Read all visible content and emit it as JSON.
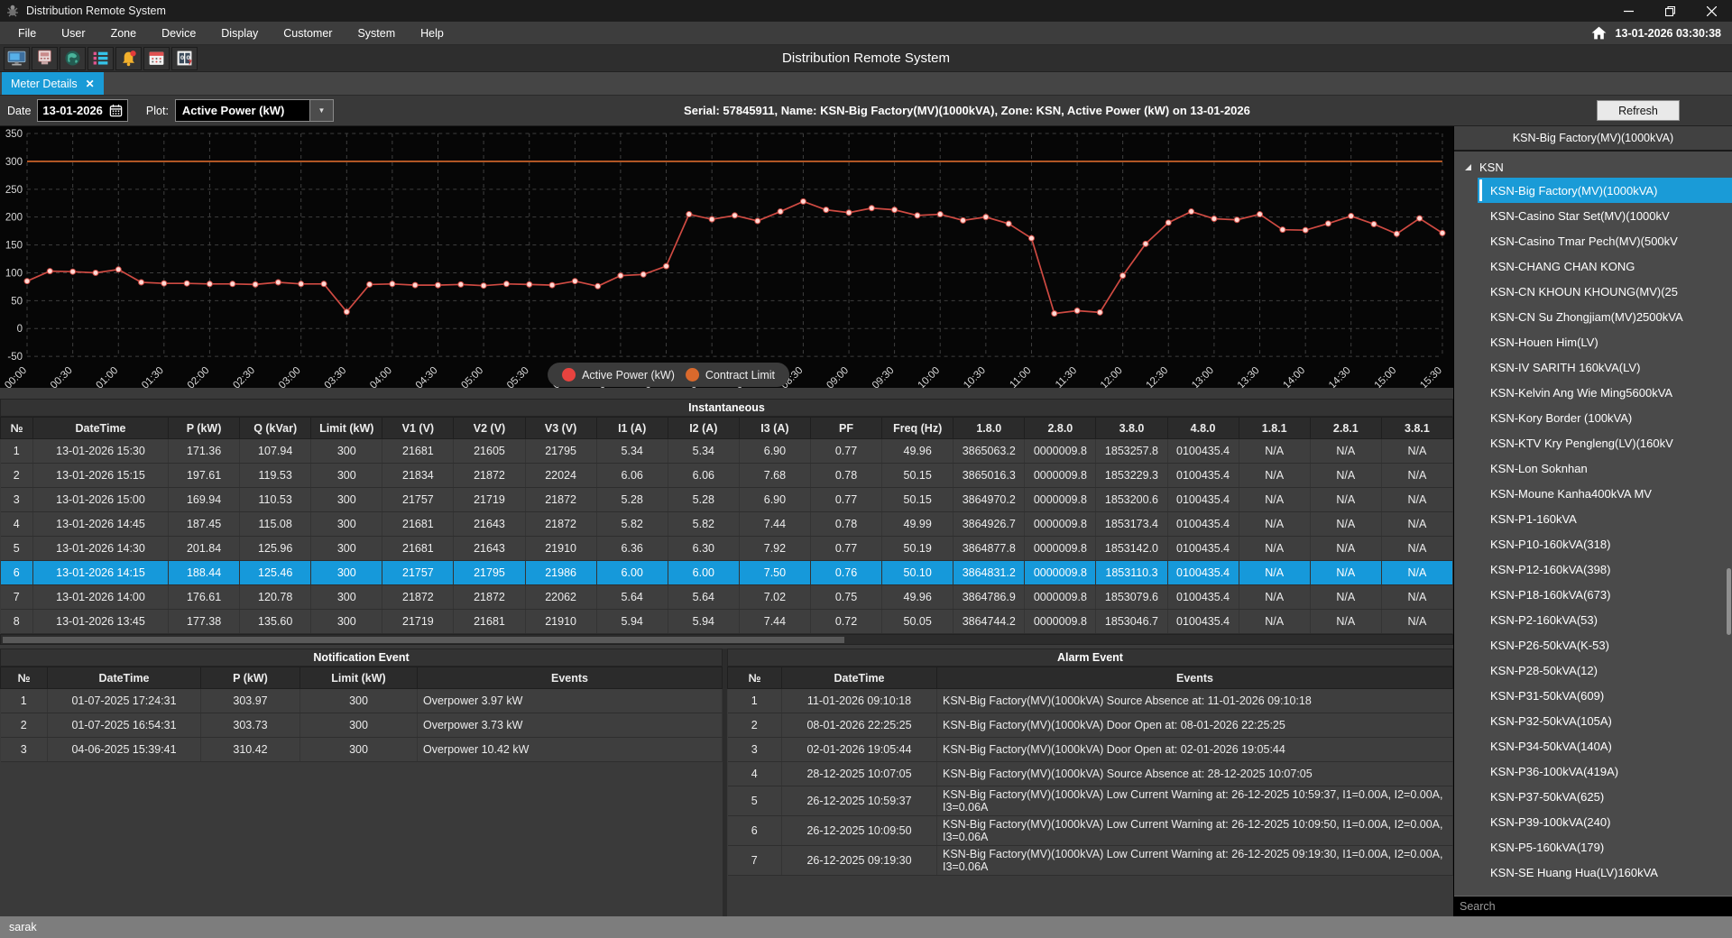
{
  "window": {
    "title": "Distribution Remote System"
  },
  "menu": {
    "items": [
      "File",
      "User",
      "Zone",
      "Device",
      "Display",
      "Customer",
      "System",
      "Help"
    ],
    "clock": "13-01-2026 03:30:38"
  },
  "toolbar": {
    "title": "Distribution Remote System",
    "icons": [
      "monitor-icon",
      "device-icon",
      "map-icon",
      "list-icon",
      "alarm-bell-icon",
      "calendar-grid-icon",
      "register-icon"
    ]
  },
  "tab": {
    "label": "Meter Details"
  },
  "controls": {
    "date_label": "Date",
    "date_value": "13-01-2026",
    "plot_label": "Plot:",
    "plot_value": "Active Power (kW)",
    "info": "Serial: 57845911, Name: KSN-Big Factory(MV)(1000kVA), Zone: KSN,  Active Power (kW)  on 13-01-2026",
    "refresh_label": "Refresh"
  },
  "chart_data": {
    "type": "line",
    "x": [
      "00:00",
      "00:15",
      "00:30",
      "00:45",
      "01:00",
      "01:15",
      "01:30",
      "01:45",
      "02:00",
      "02:15",
      "02:30",
      "02:45",
      "03:00",
      "03:15",
      "03:30",
      "03:45",
      "04:00",
      "04:15",
      "04:30",
      "04:45",
      "05:00",
      "05:15",
      "05:30",
      "05:45",
      "06:00",
      "06:15",
      "06:30",
      "06:45",
      "07:00",
      "07:15",
      "07:30",
      "07:45",
      "08:00",
      "08:15",
      "08:30",
      "08:45",
      "09:00",
      "09:15",
      "09:30",
      "09:45",
      "10:00",
      "10:15",
      "10:30",
      "10:45",
      "11:00",
      "11:15",
      "11:30",
      "11:45",
      "12:00",
      "12:15",
      "12:30",
      "12:45",
      "13:00",
      "13:15",
      "13:30",
      "13:45",
      "14:00",
      "14:15",
      "14:30",
      "14:45",
      "15:00",
      "15:15",
      "15:30"
    ],
    "series": [
      {
        "name": "Active Power (kW)",
        "color": "#cf4a42",
        "values": [
          85,
          103,
          102,
          100,
          106,
          83,
          81,
          81,
          80,
          80,
          79,
          83,
          80,
          80,
          30,
          79,
          80,
          78,
          78,
          79,
          77,
          80,
          79,
          78,
          85,
          76,
          95,
          97,
          112,
          205,
          196,
          203,
          193,
          210,
          228,
          213,
          208,
          216,
          213,
          203,
          205,
          194,
          200,
          188,
          162,
          27,
          32,
          29,
          95,
          152,
          190,
          210,
          197,
          195,
          205,
          177.38,
          176.61,
          188.44,
          201.84,
          187.45,
          169.94,
          197.61,
          171.36
        ]
      },
      {
        "name": "Contract Limit",
        "color": "#d9692c",
        "constant": 300
      }
    ],
    "ylim": [
      -50,
      350
    ],
    "ytick_step": 50,
    "xtick_every": 2,
    "grid": true,
    "legend_position": "bottom-center"
  },
  "instantaneous": {
    "title": "Instantaneous",
    "columns": [
      "№",
      "DateTime",
      "P (kW)",
      "Q (kVar)",
      "Limit (kW)",
      "V1 (V)",
      "V2 (V)",
      "V3 (V)",
      "I1 (A)",
      "I2 (A)",
      "I3 (A)",
      "PF",
      "Freq (Hz)",
      "1.8.0",
      "2.8.0",
      "3.8.0",
      "4.8.0",
      "1.8.1",
      "2.8.1",
      "3.8.1"
    ],
    "selected_row_index": 5,
    "rows": [
      [
        "1",
        "13-01-2026 15:30",
        "171.36",
        "107.94",
        "300",
        "21681",
        "21605",
        "21795",
        "5.34",
        "5.34",
        "6.90",
        "0.77",
        "49.96",
        "3865063.2",
        "0000009.8",
        "1853257.8",
        "0100435.4",
        "N/A",
        "N/A",
        "N/A"
      ],
      [
        "2",
        "13-01-2026 15:15",
        "197.61",
        "119.53",
        "300",
        "21834",
        "21872",
        "22024",
        "6.06",
        "6.06",
        "7.68",
        "0.78",
        "50.15",
        "3865016.3",
        "0000009.8",
        "1853229.3",
        "0100435.4",
        "N/A",
        "N/A",
        "N/A"
      ],
      [
        "3",
        "13-01-2026 15:00",
        "169.94",
        "110.53",
        "300",
        "21757",
        "21719",
        "21872",
        "5.28",
        "5.28",
        "6.90",
        "0.77",
        "50.15",
        "3864970.2",
        "0000009.8",
        "1853200.6",
        "0100435.4",
        "N/A",
        "N/A",
        "N/A"
      ],
      [
        "4",
        "13-01-2026 14:45",
        "187.45",
        "115.08",
        "300",
        "21681",
        "21643",
        "21872",
        "5.82",
        "5.82",
        "7.44",
        "0.78",
        "49.99",
        "3864926.7",
        "0000009.8",
        "1853173.4",
        "0100435.4",
        "N/A",
        "N/A",
        "N/A"
      ],
      [
        "5",
        "13-01-2026 14:30",
        "201.84",
        "125.96",
        "300",
        "21681",
        "21643",
        "21910",
        "6.36",
        "6.30",
        "7.92",
        "0.77",
        "50.19",
        "3864877.8",
        "0000009.8",
        "1853142.0",
        "0100435.4",
        "N/A",
        "N/A",
        "N/A"
      ],
      [
        "6",
        "13-01-2026 14:15",
        "188.44",
        "125.46",
        "300",
        "21757",
        "21795",
        "21986",
        "6.00",
        "6.00",
        "7.50",
        "0.76",
        "50.10",
        "3864831.2",
        "0000009.8",
        "1853110.3",
        "0100435.4",
        "N/A",
        "N/A",
        "N/A"
      ],
      [
        "7",
        "13-01-2026 14:00",
        "176.61",
        "120.78",
        "300",
        "21872",
        "21872",
        "22062",
        "5.64",
        "5.64",
        "7.02",
        "0.75",
        "49.96",
        "3864786.9",
        "0000009.8",
        "1853079.6",
        "0100435.4",
        "N/A",
        "N/A",
        "N/A"
      ],
      [
        "8",
        "13-01-2026 13:45",
        "177.38",
        "135.60",
        "300",
        "21719",
        "21681",
        "21910",
        "5.94",
        "5.94",
        "7.44",
        "0.72",
        "50.05",
        "3864744.2",
        "0000009.8",
        "1853046.7",
        "0100435.4",
        "N/A",
        "N/A",
        "N/A"
      ]
    ]
  },
  "notification_event": {
    "title": "Notification Event",
    "columns": [
      "№",
      "DateTime",
      "P (kW)",
      "Limit (kW)",
      "Events"
    ],
    "rows": [
      [
        "1",
        "01-07-2025 17:24:31",
        "303.97",
        "300",
        "Overpower 3.97 kW"
      ],
      [
        "2",
        "01-07-2025 16:54:31",
        "303.73",
        "300",
        "Overpower 3.73 kW"
      ],
      [
        "3",
        "04-06-2025 15:39:41",
        "310.42",
        "300",
        "Overpower 10.42 kW"
      ]
    ]
  },
  "alarm_event": {
    "title": "Alarm Event",
    "columns": [
      "№",
      "DateTime",
      "Events"
    ],
    "rows": [
      [
        "1",
        "11-01-2026 09:10:18",
        "KSN-Big Factory(MV)(1000kVA) Source Absence at: 11-01-2026 09:10:18"
      ],
      [
        "2",
        "08-01-2026 22:25:25",
        "KSN-Big Factory(MV)(1000kVA) Door Open at: 08-01-2026 22:25:25"
      ],
      [
        "3",
        "02-01-2026 19:05:44",
        "KSN-Big Factory(MV)(1000kVA) Door Open at: 02-01-2026 19:05:44"
      ],
      [
        "4",
        "28-12-2025 10:07:05",
        "KSN-Big Factory(MV)(1000kVA) Source Absence at: 28-12-2025 10:07:05"
      ],
      [
        "5",
        "26-12-2025 10:59:37",
        "KSN-Big Factory(MV)(1000kVA) Low Current Warning at: 26-12-2025 10:59:37, I1=0.00A, I2=0.00A, I3=0.06A"
      ],
      [
        "6",
        "26-12-2025 10:09:50",
        "KSN-Big Factory(MV)(1000kVA) Low Current Warning at: 26-12-2025 10:09:50, I1=0.00A, I2=0.00A, I3=0.06A"
      ],
      [
        "7",
        "26-12-2025 09:19:30",
        "KSN-Big Factory(MV)(1000kVA) Low Current Warning at: 26-12-2025 09:19:30, I1=0.00A, I2=0.00A, I3=0.06A"
      ]
    ]
  },
  "sidebar": {
    "header": "KSN-Big Factory(MV)(1000kVA)",
    "group": "KSN",
    "selected_index": 0,
    "search_placeholder": "Search",
    "items": [
      "KSN-Big Factory(MV)(1000kVA)",
      "KSN-Casino Star Set(MV)(1000kV",
      "KSN-Casino Tmar Pech(MV)(500kV",
      "KSN-CHANG CHAN KONG",
      "KSN-CN KHOUN KHOUNG(MV)(25",
      "KSN-CN Su Zhongjiam(MV)2500kVA",
      "KSN-Houen Him(LV)",
      "KSN-IV SARITH 160kVA(LV)",
      "KSN-Kelvin Ang Wie Ming5600kVA",
      "KSN-Kory Border (100kVA)",
      "KSN-KTV Kry Pengleng(LV)(160kV",
      "KSN-Lon Soknhan",
      "KSN-Moune Kanha400kVA MV",
      "KSN-P1-160kVA",
      "KSN-P10-160kVA(318)",
      "KSN-P12-160kVA(398)",
      "KSN-P18-160kVA(673)",
      "KSN-P2-160kVA(53)",
      "KSN-P26-50kVA(K-53)",
      "KSN-P28-50kVA(12)",
      "KSN-P31-50kVA(609)",
      "KSN-P32-50kVA(105A)",
      "KSN-P34-50kVA(140A)",
      "KSN-P36-100kVA(419A)",
      "KSN-P37-50kVA(625)",
      "KSN-P39-100kVA(240)",
      "KSN-P5-160kVA(179)",
      "KSN-SE Huang Hua(LV)160kVA"
    ]
  },
  "status_bar": {
    "user": "sarak"
  },
  "colors": {
    "accent": "#199bd7",
    "selection": "#1699da",
    "series": "#cf4a42",
    "limit": "#d9692c",
    "legend_active": "#e8433f",
    "legend_limit": "#d9692c"
  }
}
